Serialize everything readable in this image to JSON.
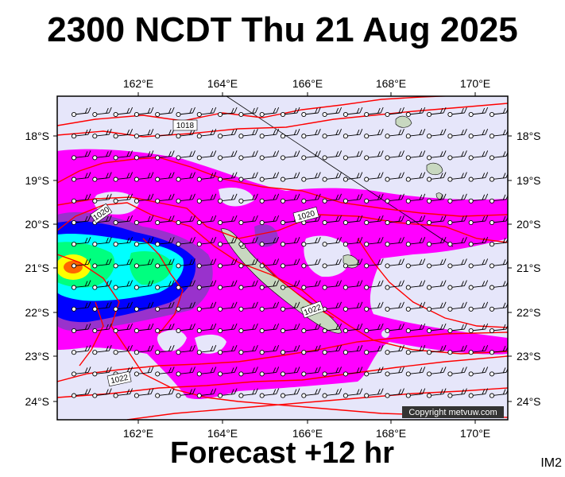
{
  "header": {
    "title": "2300 NCDT Thu 21 Aug 2025"
  },
  "footer": {
    "forecast": "Forecast +12 hr",
    "code": "IM2"
  },
  "map": {
    "lon_ticks": [
      "162°E",
      "164°E",
      "166°E",
      "168°E",
      "170°E"
    ],
    "lat_ticks": [
      "18°S",
      "19°S",
      "20°S",
      "21°S",
      "22°S",
      "23°S",
      "24°S"
    ],
    "isobar_labels": [
      "1018",
      "1020",
      "1020",
      "1022",
      "1022"
    ],
    "copyright": "Copyright metvuw.com",
    "colors": {
      "background": "#e6e6fa",
      "rain_light": "#ff00ff",
      "rain_moderate": "#8a2be2",
      "rain_heavy": "#0000ff",
      "rain_very_heavy": "#00ffff",
      "rain_extreme": "#00ff00",
      "rain_max": "#ffff00",
      "rain_peak": "#ff6600",
      "isobar": "#ff0000",
      "land": "#c8d8c0"
    }
  }
}
